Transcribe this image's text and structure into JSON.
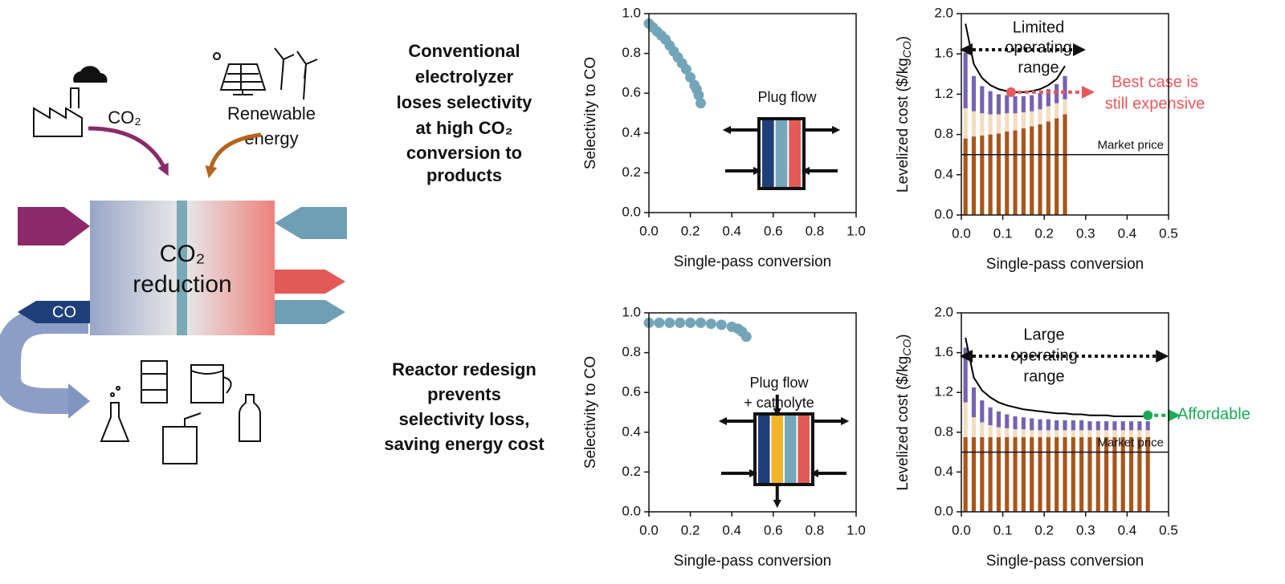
{
  "diagram": {
    "co2_source": "CO₂",
    "renewable": [
      "Renewable",
      "energy"
    ],
    "reactor": [
      "CO₂",
      "reduction"
    ],
    "product": "CO"
  },
  "captions": [
    {
      "lines": [
        "Conventional",
        "electrolyzer",
        "loses selectivity",
        "at high CO₂",
        "conversion to",
        "products"
      ]
    },
    {
      "lines": [
        "Reactor redesign",
        "prevents",
        "selectivity loss,",
        "saving energy cost"
      ]
    }
  ],
  "chart_data": [
    {
      "type": "scatter",
      "xlabel": "Single-pass conversion",
      "ylabel": "Selectivity to CO",
      "color": "#73a5b8",
      "x": [
        0,
        0.02,
        0.04,
        0.06,
        0.08,
        0.1,
        0.12,
        0.14,
        0.16,
        0.18,
        0.2,
        0.22,
        0.23,
        0.24,
        0.25
      ],
      "values": [
        0.95,
        0.93,
        0.91,
        0.89,
        0.87,
        0.84,
        0.81,
        0.78,
        0.75,
        0.72,
        0.68,
        0.64,
        0.62,
        0.59,
        0.55
      ],
      "xlim": [
        0,
        1
      ],
      "ylim": [
        0,
        1
      ],
      "xticks": [
        {
          "value": 0,
          "label": "0.0"
        },
        0.2,
        0.4,
        0.6,
        0.8,
        {
          "value": 1,
          "label": "1.0"
        }
      ],
      "yticks": [
        {
          "value": 0,
          "label": "0.0"
        },
        0.2,
        0.4,
        0.6,
        0.8,
        {
          "value": 1,
          "label": "1.0"
        }
      ],
      "inset_label": [
        "Plug flow"
      ]
    },
    {
      "type": "bar",
      "stacked": true,
      "xlabel": "Single-pass conversion",
      "ylabel": "Levelized cost ($/kg",
      "ylabel_sub": "CO",
      "ylabel_end": ")",
      "x": [
        0.01,
        0.03,
        0.05,
        0.07,
        0.09,
        0.11,
        0.13,
        0.15,
        0.17,
        0.19,
        0.21,
        0.23,
        0.25
      ],
      "series": [
        {
          "color": "#a8561c",
          "values": [
            0.76,
            0.78,
            0.79,
            0.8,
            0.81,
            0.83,
            0.84,
            0.86,
            0.88,
            0.9,
            0.93,
            0.96,
            1.0
          ]
        },
        {
          "color": "#f3dcc0",
          "values": [
            0.3,
            0.25,
            0.22,
            0.2,
            0.19,
            0.18,
            0.17,
            0.16,
            0.15,
            0.15,
            0.15,
            0.15,
            0.15
          ]
        },
        {
          "color": "#7563b0",
          "values": [
            0.55,
            0.35,
            0.27,
            0.23,
            0.2,
            0.18,
            0.17,
            0.16,
            0.16,
            0.16,
            0.17,
            0.19,
            0.23
          ]
        }
      ],
      "line": {
        "color": "#000000",
        "values": [
          1.9,
          1.5,
          1.36,
          1.29,
          1.25,
          1.23,
          1.22,
          1.22,
          1.23,
          1.25,
          1.29,
          1.35,
          1.48
        ]
      },
      "xlim": [
        0,
        0.5
      ],
      "ylim": [
        0,
        2
      ],
      "xticks": [
        {
          "value": 0,
          "label": "0.0"
        },
        0.1,
        0.2,
        0.3,
        0.4,
        0.5
      ],
      "yticks": [
        {
          "value": 0,
          "label": "0.0"
        },
        0.4,
        0.8,
        1.2,
        1.6,
        {
          "value": 2,
          "label": "2.0"
        }
      ],
      "reference_line": {
        "value": 0.6,
        "label": "Market price"
      },
      "annotation": [
        "Limited",
        "operating",
        "range"
      ],
      "highlight": {
        "x": 0.12,
        "y": 1.22,
        "color": "#e8585a",
        "label": [
          "Best case is",
          "still expensive"
        ]
      }
    },
    {
      "type": "scatter",
      "xlabel": "Single-pass conversion",
      "ylabel": "Selectivity to CO",
      "color": "#73a5b8",
      "x": [
        0,
        0.05,
        0.1,
        0.15,
        0.2,
        0.25,
        0.3,
        0.35,
        0.4,
        0.43,
        0.45,
        0.47
      ],
      "values": [
        0.95,
        0.95,
        0.95,
        0.95,
        0.95,
        0.95,
        0.945,
        0.94,
        0.93,
        0.92,
        0.905,
        0.88
      ],
      "xlim": [
        0,
        1
      ],
      "ylim": [
        0,
        1
      ],
      "xticks": [
        {
          "value": 0,
          "label": "0.0"
        },
        0.2,
        0.4,
        0.6,
        0.8,
        {
          "value": 1,
          "label": "1.0"
        }
      ],
      "yticks": [
        {
          "value": 0,
          "label": "0.0"
        },
        0.2,
        0.4,
        0.6,
        0.8,
        {
          "value": 1,
          "label": "1.0"
        }
      ],
      "inset_label": [
        "Plug flow",
        "+ catholyte"
      ]
    },
    {
      "type": "bar",
      "stacked": true,
      "xlabel": "Single-pass conversion",
      "ylabel": "Levelized cost ($/kg",
      "ylabel_sub": "CO",
      "ylabel_end": ")",
      "x": [
        0.01,
        0.03,
        0.05,
        0.07,
        0.09,
        0.11,
        0.13,
        0.15,
        0.17,
        0.19,
        0.21,
        0.23,
        0.25,
        0.27,
        0.29,
        0.31,
        0.33,
        0.35,
        0.37,
        0.39,
        0.41,
        0.43,
        0.45
      ],
      "series": [
        {
          "color": "#a8561c",
          "values": [
            0.75,
            0.75,
            0.75,
            0.75,
            0.75,
            0.75,
            0.75,
            0.75,
            0.75,
            0.75,
            0.75,
            0.75,
            0.75,
            0.75,
            0.75,
            0.75,
            0.75,
            0.75,
            0.75,
            0.75,
            0.75,
            0.75,
            0.75
          ]
        },
        {
          "color": "#f3dcc0",
          "values": [
            0.35,
            0.2,
            0.15,
            0.12,
            0.1,
            0.09,
            0.08,
            0.08,
            0.07,
            0.07,
            0.07,
            0.07,
            0.07,
            0.07,
            0.07,
            0.07,
            0.07,
            0.07,
            0.07,
            0.07,
            0.07,
            0.07,
            0.07
          ]
        },
        {
          "color": "#7563b0",
          "values": [
            0.55,
            0.3,
            0.22,
            0.18,
            0.16,
            0.14,
            0.13,
            0.12,
            0.12,
            0.11,
            0.11,
            0.1,
            0.1,
            0.1,
            0.1,
            0.09,
            0.09,
            0.09,
            0.09,
            0.09,
            0.09,
            0.09,
            0.09
          ]
        }
      ],
      "line": {
        "color": "#000000",
        "values": [
          1.75,
          1.35,
          1.22,
          1.15,
          1.1,
          1.07,
          1.05,
          1.03,
          1.02,
          1.01,
          1.0,
          0.99,
          0.99,
          0.98,
          0.98,
          0.97,
          0.97,
          0.97,
          0.96,
          0.96,
          0.96,
          0.96,
          0.96
        ]
      },
      "xlim": [
        0,
        0.5
      ],
      "ylim": [
        0,
        2
      ],
      "xticks": [
        {
          "value": 0,
          "label": "0.0"
        },
        0.1,
        0.2,
        0.3,
        0.4,
        0.5
      ],
      "yticks": [
        {
          "value": 0,
          "label": "0.0"
        },
        0.4,
        0.8,
        1.2,
        1.6,
        {
          "value": 2,
          "label": "2.0"
        }
      ],
      "reference_line": {
        "value": 0.6,
        "label": "Market price"
      },
      "annotation": [
        "Large",
        "operating",
        "range"
      ],
      "highlight": {
        "x": 0.45,
        "y": 0.97,
        "color": "#1aaa55",
        "label": [
          "Affordable"
        ]
      }
    }
  ]
}
